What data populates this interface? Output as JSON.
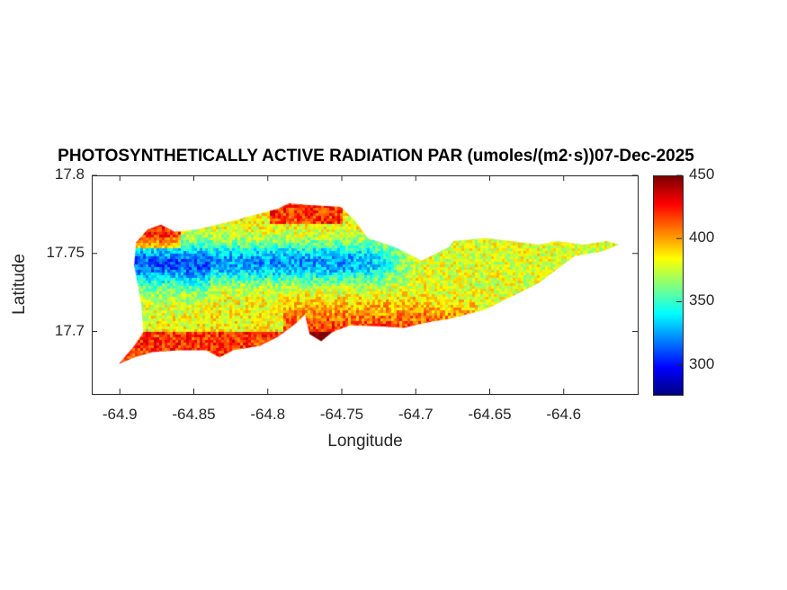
{
  "chart_data": {
    "type": "heatmap",
    "title": "PHOTOSYNTHETICALLY ACTIVE RADIATION PAR (umoles/(m2·s))07-Dec-2025",
    "xlabel": "Longitude",
    "ylabel": "Latitude",
    "xlim": [
      -64.919,
      -64.55
    ],
    "ylim": [
      17.66,
      17.8
    ],
    "xticks": [
      -64.9,
      -64.85,
      -64.8,
      -64.75,
      -64.7,
      -64.65,
      -64.6
    ],
    "xtick_labels": [
      "-64.9",
      "-64.85",
      "-64.8",
      "-64.75",
      "-64.7",
      "-64.65",
      "-64.6"
    ],
    "yticks": [
      17.7,
      17.75,
      17.8
    ],
    "ytick_labels": [
      "17.7",
      "17.75",
      "17.8"
    ],
    "colormap": "jet",
    "clim": [
      277,
      450
    ],
    "colorbar_ticks": [
      300,
      350,
      400,
      450
    ],
    "colorbar_tick_labels": [
      "300",
      "350",
      "400",
      "450"
    ],
    "grid": false,
    "outline_lonlat": [
      [
        -64.9006,
        17.6793
      ],
      [
        -64.8903,
        17.6908
      ],
      [
        -64.8842,
        17.6994
      ],
      [
        -64.8854,
        17.7167
      ],
      [
        -64.8903,
        17.7425
      ],
      [
        -64.8891,
        17.7569
      ],
      [
        -64.8812,
        17.7655
      ],
      [
        -64.8721,
        17.7684
      ],
      [
        -64.8629,
        17.7638
      ],
      [
        -64.8478,
        17.7655
      ],
      [
        -64.8295,
        17.7695
      ],
      [
        -64.8113,
        17.7741
      ],
      [
        -64.7931,
        17.7787
      ],
      [
        -64.7858,
        17.7822
      ],
      [
        -64.7718,
        17.781
      ],
      [
        -64.7506,
        17.7799
      ],
      [
        -64.7414,
        17.7713
      ],
      [
        -64.7323,
        17.7598
      ],
      [
        -64.7141,
        17.754
      ],
      [
        -64.6959,
        17.7454
      ],
      [
        -64.6777,
        17.754
      ],
      [
        -64.6746,
        17.758
      ],
      [
        -64.6534,
        17.7598
      ],
      [
        -64.6351,
        17.758
      ],
      [
        -64.6169,
        17.7557
      ],
      [
        -64.6048,
        17.758
      ],
      [
        -64.5865,
        17.7557
      ],
      [
        -64.5713,
        17.758
      ],
      [
        -64.5622,
        17.7557
      ],
      [
        -64.5744,
        17.7512
      ],
      [
        -64.5926,
        17.7483
      ],
      [
        -64.6048,
        17.7397
      ],
      [
        -64.6169,
        17.731
      ],
      [
        -64.6351,
        17.7224
      ],
      [
        -64.6534,
        17.7138
      ],
      [
        -64.6777,
        17.708
      ],
      [
        -64.6898,
        17.7063
      ],
      [
        -64.708,
        17.7023
      ],
      [
        -64.7263,
        17.7034
      ],
      [
        -64.7445,
        17.704
      ],
      [
        -64.7566,
        17.6994
      ],
      [
        -64.7639,
        17.6937
      ],
      [
        -64.7718,
        17.6983
      ],
      [
        -64.7749,
        17.7109
      ],
      [
        -64.7809,
        17.7052
      ],
      [
        -64.7931,
        17.6966
      ],
      [
        -64.8052,
        17.6908
      ],
      [
        -64.8234,
        17.6879
      ],
      [
        -64.8326,
        17.6833
      ],
      [
        -64.8417,
        17.6879
      ],
      [
        -64.8599,
        17.6879
      ],
      [
        -64.8781,
        17.6868
      ],
      [
        -64.8903,
        17.6833
      ]
    ],
    "field_summary": {
      "min_approx": 295,
      "max_approx": 450,
      "low_region": "central north",
      "high_region": "west and south coasts"
    }
  }
}
